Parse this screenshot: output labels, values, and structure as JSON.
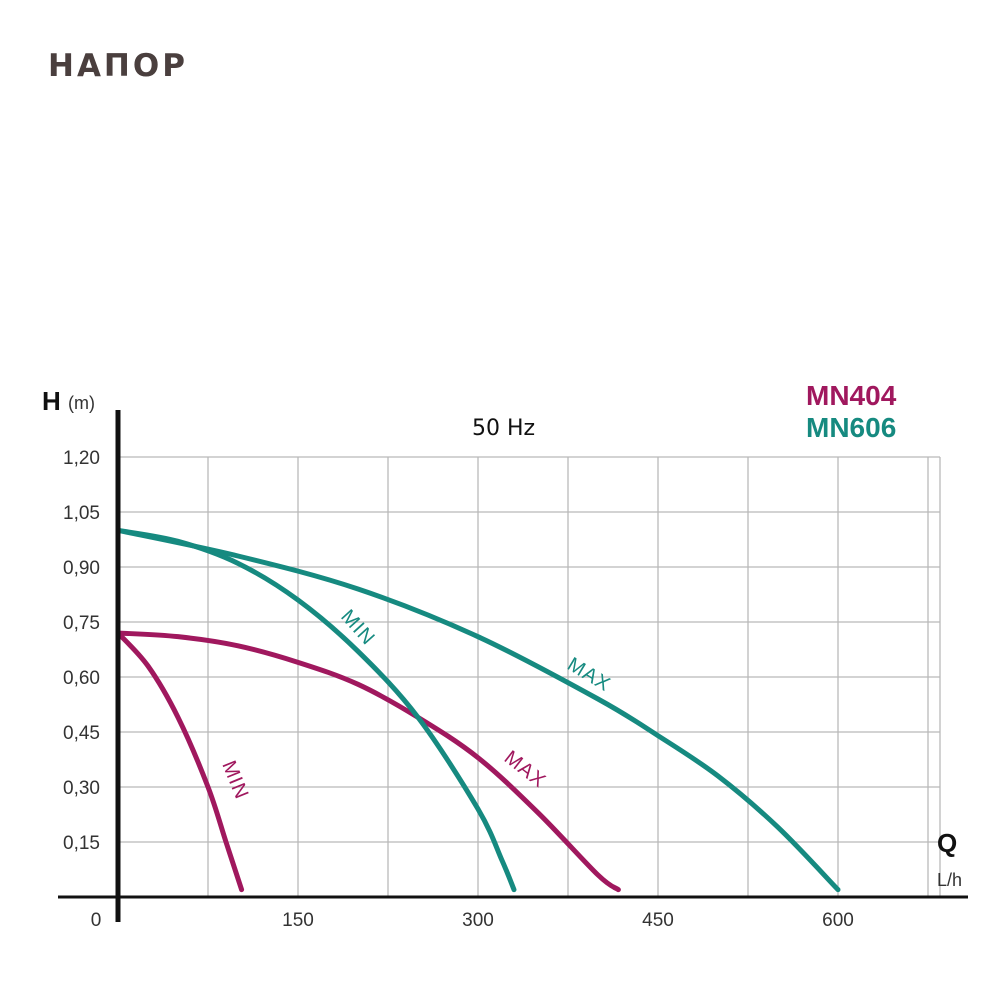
{
  "page": {
    "title": "НАПОР"
  },
  "chart_data": {
    "type": "line",
    "title": "50 Hz",
    "ylabel": "H",
    "yunit": "(m)",
    "xlabel": "Q",
    "xunit": "L/h",
    "xlim": [
      0,
      700
    ],
    "ylim": [
      0,
      1.2
    ],
    "xticks": [
      "0",
      "150",
      "300",
      "450",
      "600"
    ],
    "yticks": [
      "0,15",
      "0,30",
      "0,45",
      "0,60",
      "0,75",
      "0,90",
      "1,05",
      "1,20"
    ],
    "grid": true,
    "models": [
      {
        "name": "MN404",
        "color": "#a0185e"
      },
      {
        "name": "MN606",
        "color": "#168a80"
      }
    ],
    "series": [
      {
        "model": "MN404",
        "label": "MIN",
        "color": "#a0185e",
        "x": [
          0,
          25,
          50,
          75,
          90,
          103
        ],
        "y": [
          0.72,
          0.63,
          0.49,
          0.3,
          0.15,
          0.02
        ]
      },
      {
        "model": "MN404",
        "label": "MAX",
        "color": "#a0185e",
        "x": [
          0,
          50,
          100,
          150,
          200,
          250,
          300,
          350,
          400,
          417
        ],
        "y": [
          0.72,
          0.71,
          0.685,
          0.64,
          0.58,
          0.49,
          0.38,
          0.23,
          0.06,
          0.02
        ]
      },
      {
        "model": "MN606",
        "label": "MIN",
        "color": "#168a80",
        "x": [
          0,
          50,
          100,
          150,
          200,
          250,
          300,
          320,
          330
        ],
        "y": [
          1.0,
          0.97,
          0.91,
          0.81,
          0.67,
          0.49,
          0.24,
          0.1,
          0.02
        ]
      },
      {
        "model": "MN606",
        "label": "MAX",
        "color": "#168a80",
        "x": [
          0,
          100,
          200,
          300,
          400,
          450,
          500,
          550,
          600
        ],
        "y": [
          1.0,
          0.93,
          0.84,
          0.71,
          0.54,
          0.44,
          0.33,
          0.19,
          0.02
        ]
      }
    ]
  }
}
